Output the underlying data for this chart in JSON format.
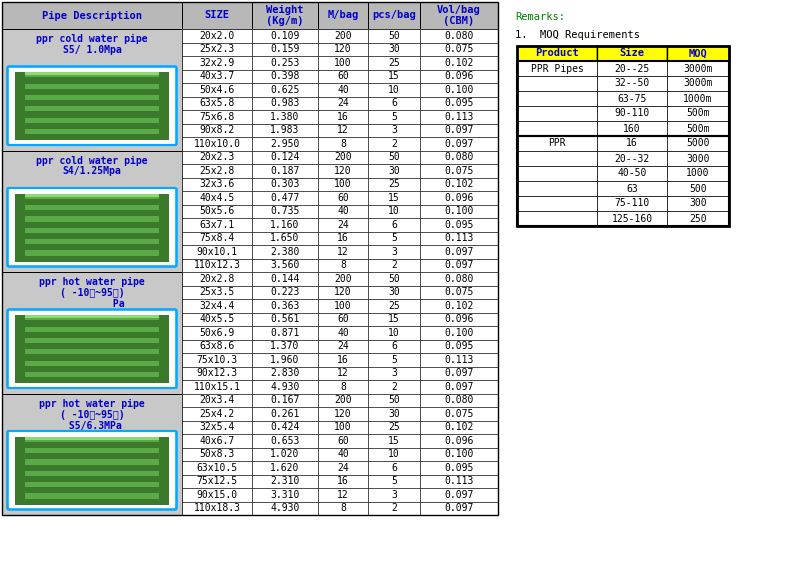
{
  "header": [
    "Pipe Description",
    "SIZE",
    "Weight\n(Kg/m)",
    "M/bag",
    "pcs/bag",
    "Vol/bag\n(CBM)"
  ],
  "sections": [
    {
      "label": "ppr cold water pipe\nS5/ 1.0Mpa",
      "label_color": "#0000cc",
      "rows": [
        [
          "20x2.0",
          "0.109",
          "200",
          "50",
          "0.080"
        ],
        [
          "25x2.3",
          "0.159",
          "120",
          "30",
          "0.075"
        ],
        [
          "32x2.9",
          "0.253",
          "100",
          "25",
          "0.102"
        ],
        [
          "40x3.7",
          "0.398",
          "60",
          "15",
          "0.096"
        ],
        [
          "50x4.6",
          "0.625",
          "40",
          "10",
          "0.100"
        ],
        [
          "63x5.8",
          "0.983",
          "24",
          "6",
          "0.095"
        ],
        [
          "75x6.8",
          "1.380",
          "16",
          "5",
          "0.113"
        ],
        [
          "90x8.2",
          "1.983",
          "12",
          "3",
          "0.097"
        ],
        [
          "110x10.0",
          "2.950",
          "8",
          "2",
          "0.097"
        ]
      ]
    },
    {
      "label": "ppr cold water pipe\nS4/1.25Mpa",
      "label_color": "#0000cc",
      "rows": [
        [
          "20x2.3",
          "0.124",
          "200",
          "50",
          "0.080"
        ],
        [
          "25x2.8",
          "0.187",
          "120",
          "30",
          "0.075"
        ],
        [
          "32x3.6",
          "0.303",
          "100",
          "25",
          "0.102"
        ],
        [
          "40x4.5",
          "0.477",
          "60",
          "15",
          "0.096"
        ],
        [
          "50x5.6",
          "0.735",
          "40",
          "10",
          "0.100"
        ],
        [
          "63x7.1",
          "1.160",
          "24",
          "6",
          "0.095"
        ],
        [
          "75x8.4",
          "1.650",
          "16",
          "5",
          "0.113"
        ],
        [
          "90x10.1",
          "2.380",
          "12",
          "3",
          "0.097"
        ],
        [
          "110x12.3",
          "3.560",
          "8",
          "2",
          "0.097"
        ]
      ]
    },
    {
      "label": "ppr hot water pipe\n( -10℃~95℃)\n         Pa",
      "label_color": "#0000cc",
      "rows": [
        [
          "20x2.8",
          "0.144",
          "200",
          "50",
          "0.080"
        ],
        [
          "25x3.5",
          "0.223",
          "120",
          "30",
          "0.075"
        ],
        [
          "32x4.4",
          "0.363",
          "100",
          "25",
          "0.102"
        ],
        [
          "40x5.5",
          "0.561",
          "60",
          "15",
          "0.096"
        ],
        [
          "50x6.9",
          "0.871",
          "40",
          "10",
          "0.100"
        ],
        [
          "63x8.6",
          "1.370",
          "24",
          "6",
          "0.095"
        ],
        [
          "75x10.3",
          "1.960",
          "16",
          "5",
          "0.113"
        ],
        [
          "90x12.3",
          "2.830",
          "12",
          "3",
          "0.097"
        ],
        [
          "110x15.1",
          "4.930",
          "8",
          "2",
          "0.097"
        ]
      ]
    },
    {
      "label": "ppr hot water pipe\n( -10℃~95℃)\n S5/6.3MPa",
      "label_color": "#0000cc",
      "rows": [
        [
          "20x3.4",
          "0.167",
          "200",
          "50",
          "0.080"
        ],
        [
          "25x4.2",
          "0.261",
          "120",
          "30",
          "0.075"
        ],
        [
          "32x5.4",
          "0.424",
          "100",
          "25",
          "0.102"
        ],
        [
          "40x6.7",
          "0.653",
          "60",
          "15",
          "0.096"
        ],
        [
          "50x8.3",
          "1.020",
          "40",
          "10",
          "0.100"
        ],
        [
          "63x10.5",
          "1.620",
          "24",
          "6",
          "0.095"
        ],
        [
          "75x12.5",
          "2.310",
          "16",
          "5",
          "0.113"
        ],
        [
          "90x15.0",
          "3.310",
          "12",
          "3",
          "0.097"
        ],
        [
          "110x18.3",
          "4.930",
          "8",
          "2",
          "0.097"
        ]
      ]
    }
  ],
  "remarks_title": "Remarks:",
  "remarks_color": "#008000",
  "moq_title": "1.  MOQ Requirements",
  "moq_header": [
    "Product",
    "Size",
    "MOQ"
  ],
  "moq_header_bg": "#ffff00",
  "moq_header_text_color": "#0000cc",
  "moq_rows": [
    [
      "PPR Pipes",
      "20--25",
      "3000m"
    ],
    [
      "",
      "32--50",
      "3000m"
    ],
    [
      "",
      "63-75",
      "1000m"
    ],
    [
      "",
      "90-110",
      "500m"
    ],
    [
      "",
      "160",
      "500m"
    ],
    [
      "PPR",
      "16",
      "5000"
    ],
    [
      "",
      "20--32",
      "3000"
    ],
    [
      "",
      "40-50",
      "1000"
    ],
    [
      "",
      "63",
      "500"
    ],
    [
      "",
      "75-110",
      "300"
    ],
    [
      "",
      "125-160",
      "250"
    ]
  ],
  "bg_color": "#ffffff",
  "header_bg": "#b8b8b8",
  "section_bg": "#c8c8c8",
  "pipe_border_color": "#00aaff"
}
